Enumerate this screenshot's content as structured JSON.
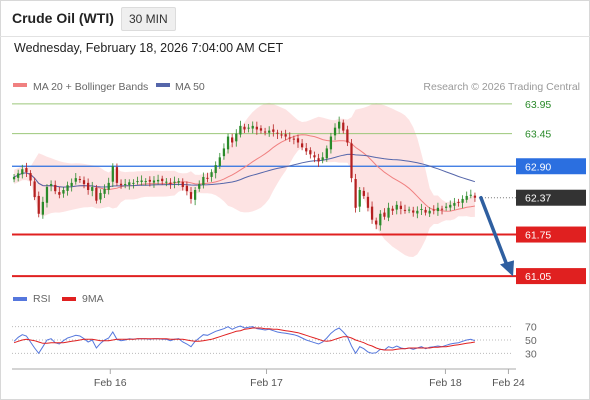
{
  "header": {
    "title": "Crude Oil (WTI)",
    "interval": "30 MIN",
    "timestamp": "Wednesday, February 18, 2026 7:04:00 AM CET"
  },
  "colors": {
    "bull": "#2a8a2a",
    "bear": "#b52020",
    "ma20": "#f08080",
    "ma50": "#5566aa",
    "bands": "#fde0e0",
    "resistance": "#9cc77a",
    "pivot": "#2b6fe0",
    "support": "#e02020",
    "last_price": "#333333",
    "rsi": "#5577dd",
    "rsi_ma": "#e02020",
    "arrow": "#2f5fa0"
  },
  "chart_data": [
    {
      "type": "candlestick",
      "credit": "Research © 2026 Trading Central",
      "legend": [
        "MA 20 + Bollinger Bands",
        "MA 50"
      ],
      "ylim": [
        60.9,
        64.1
      ],
      "x_ticks": [
        {
          "label": "Feb 16",
          "x": 0.195
        },
        {
          "label": "Feb 17",
          "x": 0.505
        },
        {
          "label": "Feb 18",
          "x": 0.86
        },
        {
          "label": "Feb 24",
          "x": 0.985
        }
      ],
      "levels": [
        {
          "value": 63.95,
          "label": "63.95",
          "kind": "resistance"
        },
        {
          "value": 63.45,
          "label": "63.45",
          "kind": "resistance"
        },
        {
          "value": 62.9,
          "label": "62.90",
          "kind": "pivot"
        },
        {
          "value": 62.37,
          "label": "62.37",
          "kind": "last"
        },
        {
          "value": 61.75,
          "label": "61.75",
          "kind": "support"
        },
        {
          "value": 61.05,
          "label": "61.05",
          "kind": "support"
        }
      ],
      "close": [
        62.72,
        62.78,
        62.85,
        62.8,
        62.66,
        62.38,
        62.1,
        62.3,
        62.55,
        62.6,
        62.48,
        62.42,
        62.5,
        62.58,
        62.62,
        62.7,
        62.68,
        62.6,
        62.5,
        62.55,
        62.32,
        62.45,
        62.52,
        62.62,
        62.9,
        62.62,
        62.58,
        62.6,
        62.63,
        62.62,
        62.65,
        62.66,
        62.65,
        62.64,
        62.66,
        62.67,
        62.65,
        62.64,
        62.6,
        62.64,
        62.65,
        62.55,
        62.48,
        62.35,
        62.5,
        62.6,
        62.72,
        62.7,
        62.8,
        62.92,
        63.05,
        63.2,
        63.4,
        63.3,
        63.45,
        63.58,
        63.52,
        63.55,
        63.58,
        63.52,
        63.5,
        63.48,
        63.5,
        63.48,
        63.45,
        63.42,
        63.4,
        63.38,
        63.35,
        63.3,
        63.22,
        63.15,
        63.1,
        63.05,
        62.98,
        63.05,
        63.2,
        63.4,
        63.55,
        63.65,
        63.5,
        63.3,
        62.7,
        62.2,
        62.5,
        62.4,
        62.2,
        62.0,
        61.92,
        62.1,
        62.05,
        62.2,
        62.15,
        62.25,
        62.18,
        62.15,
        62.17,
        62.12,
        62.15,
        62.18,
        62.12,
        62.15,
        62.16,
        62.2,
        62.18,
        62.22,
        62.25,
        62.28,
        62.3,
        62.35,
        62.4,
        62.42,
        62.37
      ],
      "rsi": {
        "legend": [
          "RSI",
          "9MA"
        ],
        "ticks": [
          70,
          50,
          30
        ],
        "ylim": [
          20,
          80
        ],
        "values": [
          48,
          54,
          58,
          56,
          47,
          38,
          30,
          40,
          50,
          52,
          46,
          44,
          49,
          53,
          55,
          57,
          56,
          52,
          47,
          50,
          38,
          45,
          50,
          53,
          62,
          51,
          49,
          50,
          52,
          51,
          52,
          52,
          52,
          51,
          52,
          52,
          51,
          51,
          49,
          51,
          52,
          47,
          44,
          40,
          48,
          53,
          58,
          57,
          60,
          63,
          65,
          67,
          70,
          66,
          69,
          71,
          68,
          69,
          70,
          67,
          66,
          65,
          66,
          64,
          62,
          61,
          60,
          59,
          58,
          56,
          53,
          50,
          48,
          46,
          44,
          47,
          53,
          60,
          65,
          68,
          62,
          55,
          41,
          30,
          40,
          37,
          32,
          30,
          31,
          36,
          35,
          40,
          38,
          41,
          38,
          37,
          38,
          36,
          38,
          40,
          37,
          39,
          40,
          41,
          40,
          42,
          44,
          45,
          46,
          48,
          50,
          51,
          49
        ],
        "ma": [
          46,
          48,
          50,
          51,
          50,
          49,
          47,
          45,
          45,
          46,
          46,
          46,
          46,
          47,
          48,
          49,
          50,
          51,
          51,
          51,
          50,
          49,
          49,
          49,
          50,
          51,
          51,
          51,
          51,
          51,
          52,
          52,
          52,
          52,
          52,
          52,
          52,
          52,
          51,
          51,
          51,
          51,
          50,
          49,
          48,
          48,
          49,
          50,
          51,
          53,
          55,
          57,
          59,
          61,
          63,
          64,
          66,
          67,
          68,
          68,
          68,
          67,
          67,
          66,
          66,
          65,
          64,
          63,
          62,
          61,
          59,
          57,
          55,
          53,
          51,
          49,
          48,
          49,
          51,
          53,
          55,
          55,
          53,
          50,
          48,
          46,
          43,
          41,
          38,
          36,
          35,
          35,
          35,
          36,
          37,
          37,
          38,
          38,
          38,
          38,
          38,
          38,
          39,
          39,
          40,
          40,
          41,
          42,
          43,
          44,
          45,
          46,
          47
        ]
      }
    }
  ]
}
